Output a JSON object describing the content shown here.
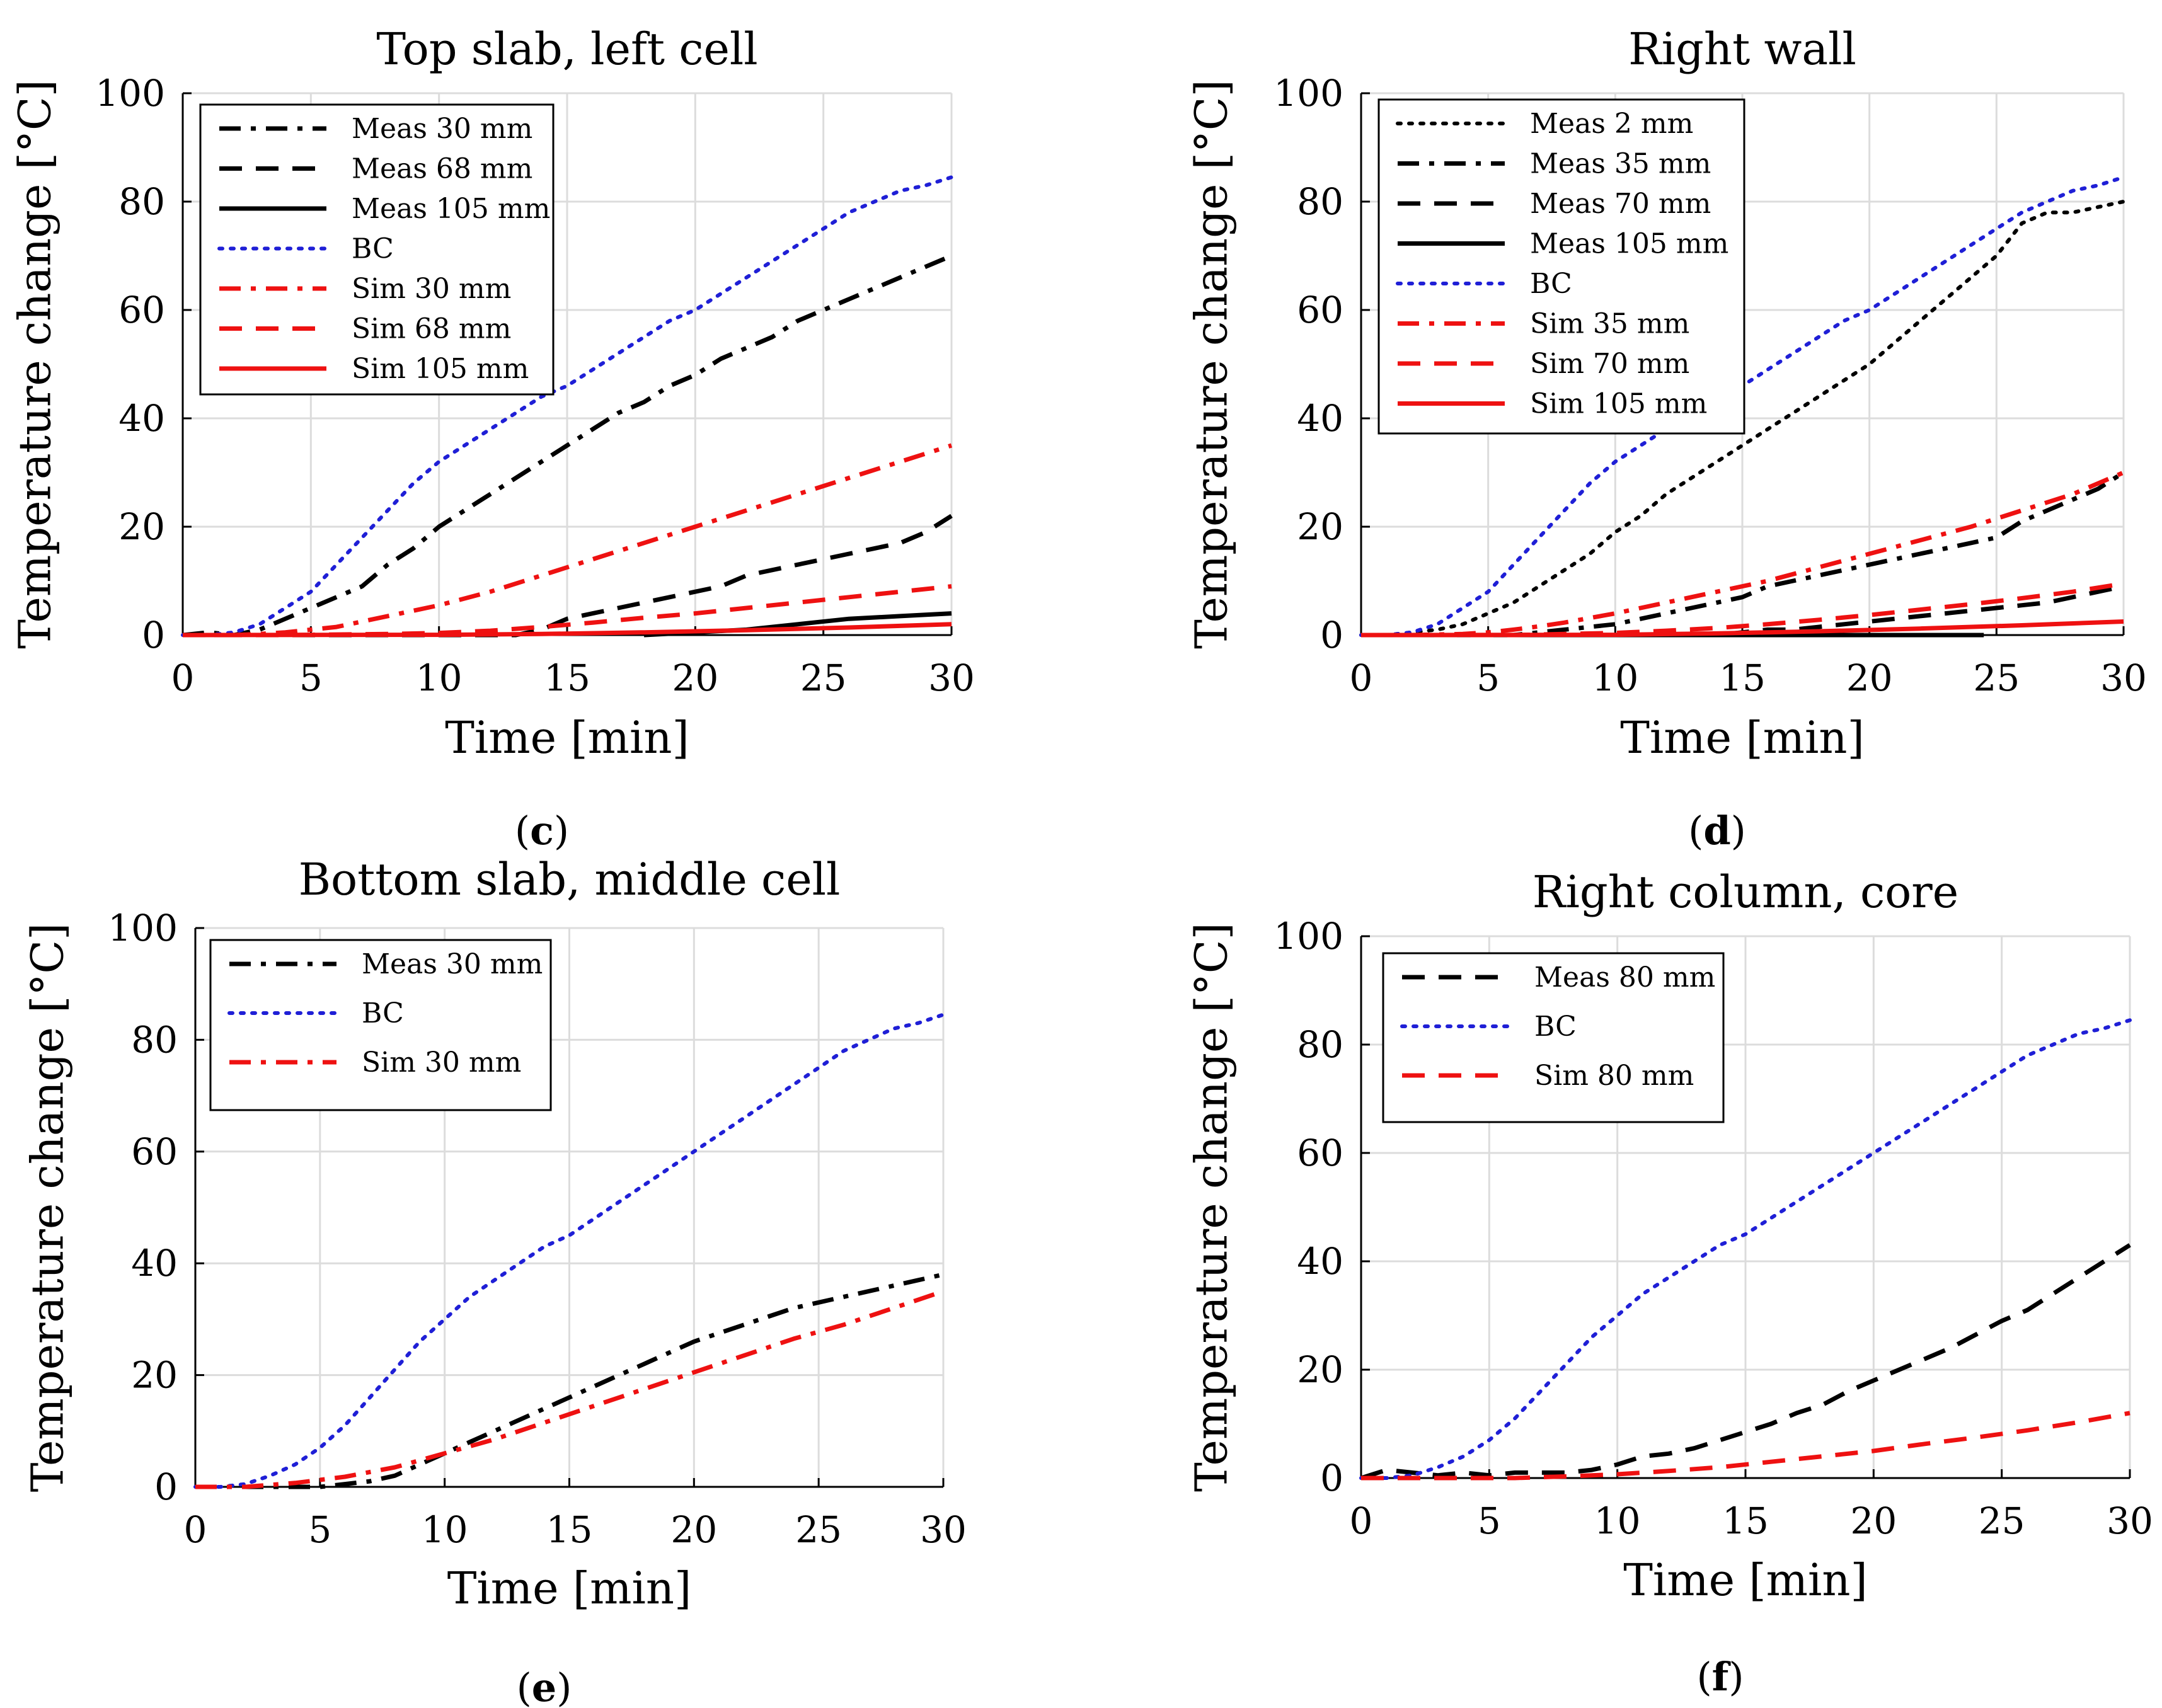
{
  "chart_data": [
    {
      "type": "line",
      "title": "Top slab, left cell",
      "caption": "c",
      "xlabel": "Time [min]",
      "ylabel": "Temperature change [°C]",
      "xlim": [
        0,
        30
      ],
      "ylim": [
        0,
        100
      ],
      "xticks": [
        0,
        5,
        10,
        15,
        20,
        25,
        30
      ],
      "yticks": [
        0,
        20,
        40,
        60,
        80,
        100
      ],
      "grid": true,
      "legend_position": "top-left",
      "series": [
        {
          "name": "Meas 30 mm",
          "color": "#000000",
          "style": "dashdot",
          "x": [
            0,
            1,
            2,
            3,
            4,
            5,
            6,
            7,
            8,
            9,
            10,
            11,
            12,
            13,
            14,
            15,
            16,
            17,
            18,
            19,
            20,
            21,
            22,
            23,
            24,
            25,
            26,
            27,
            28,
            29,
            30
          ],
          "y": [
            0,
            0.5,
            0,
            1,
            3,
            5,
            7,
            9,
            13,
            16,
            20,
            23,
            26,
            29,
            32,
            35,
            38,
            41,
            43,
            46,
            48,
            51,
            53,
            55,
            58,
            60,
            62,
            64,
            66,
            68,
            70
          ]
        },
        {
          "name": "Meas 68 mm",
          "color": "#000000",
          "style": "dashed",
          "x": [
            0,
            2,
            4,
            6,
            8,
            10,
            12,
            13,
            14,
            15,
            16,
            17,
            18,
            19,
            20,
            21,
            22,
            23,
            24,
            25,
            26,
            27,
            28,
            29,
            30
          ],
          "y": [
            0,
            0,
            0,
            0,
            0,
            0,
            0,
            0,
            1,
            3,
            4,
            5,
            6,
            7,
            8,
            9,
            11,
            12,
            13,
            14,
            15,
            16,
            17,
            19,
            22
          ]
        },
        {
          "name": "Meas 105 mm",
          "color": "#000000",
          "style": "solid",
          "x": [
            18,
            20,
            22,
            24,
            26,
            28,
            30
          ],
          "y": [
            0,
            0.5,
            1,
            2,
            3,
            3.5,
            4
          ]
        },
        {
          "name": "BC",
          "color": "#1f1fd6",
          "style": "dotted",
          "x": [
            0,
            1,
            2,
            3,
            4,
            5,
            6,
            7,
            8,
            9,
            10,
            11,
            12,
            13,
            14,
            15,
            16,
            17,
            18,
            19,
            20,
            21,
            22,
            23,
            24,
            25,
            26,
            27,
            28,
            29,
            30
          ],
          "y": [
            0,
            0,
            0.5,
            2,
            5,
            8,
            13,
            18,
            23,
            28,
            32,
            35,
            38,
            41,
            44,
            46,
            49,
            52,
            55,
            58,
            60,
            63,
            66,
            69,
            72,
            75,
            78,
            80,
            82,
            83,
            84.5
          ]
        },
        {
          "name": "Sim 30 mm",
          "color": "#ee1111",
          "style": "dashdot",
          "x": [
            0,
            2,
            3,
            4,
            5,
            6,
            7,
            8,
            9,
            10,
            12,
            14,
            16,
            18,
            20,
            22,
            24,
            26,
            28,
            30
          ],
          "y": [
            0,
            0,
            0.2,
            0.5,
            1,
            1.5,
            2.5,
            3.5,
            4.5,
            5.5,
            8,
            11,
            14,
            17,
            20,
            23,
            26,
            29,
            32,
            35
          ]
        },
        {
          "name": "Sim 68 mm",
          "color": "#ee1111",
          "style": "dashed",
          "x": [
            0,
            4,
            6,
            8,
            10,
            12,
            14,
            16,
            18,
            20,
            22,
            24,
            26,
            28,
            30
          ],
          "y": [
            0,
            0,
            0.1,
            0.2,
            0.4,
            0.8,
            1.5,
            2.3,
            3.2,
            4,
            5,
            6,
            7,
            8,
            9
          ]
        },
        {
          "name": "Sim 105 mm",
          "color": "#ee1111",
          "style": "solid",
          "x": [
            0,
            10,
            14,
            18,
            22,
            26,
            30
          ],
          "y": [
            0,
            0.05,
            0.2,
            0.5,
            0.9,
            1.4,
            2
          ]
        }
      ]
    },
    {
      "type": "line",
      "title": "Right wall",
      "caption": "d",
      "xlabel": "Time [min]",
      "ylabel": "Temperature change [°C]",
      "xlim": [
        0,
        30
      ],
      "ylim": [
        0,
        100
      ],
      "xticks": [
        0,
        5,
        10,
        15,
        20,
        25,
        30
      ],
      "yticks": [
        0,
        20,
        40,
        60,
        80,
        100
      ],
      "grid": true,
      "legend_position": "top-left",
      "series": [
        {
          "name": "Meas 2 mm",
          "color": "#000000",
          "style": "dotted",
          "x": [
            0,
            1,
            2,
            3,
            4,
            5,
            6,
            7,
            8,
            9,
            10,
            11,
            12,
            13,
            14,
            15,
            16,
            17,
            18,
            19,
            20,
            21,
            22,
            23,
            24,
            25,
            26,
            27,
            28,
            29,
            30
          ],
          "y": [
            0,
            0,
            0.5,
            1,
            2,
            4,
            6,
            9,
            12,
            15,
            19,
            22,
            26,
            29,
            32,
            35,
            38,
            41,
            44,
            47,
            50,
            54,
            58,
            62,
            66,
            70,
            76,
            78,
            78,
            79,
            80
          ]
        },
        {
          "name": "Meas 35 mm",
          "color": "#000000",
          "style": "dashdot",
          "x": [
            0,
            2,
            4,
            6,
            7,
            8,
            9,
            10,
            11,
            12,
            13,
            14,
            15,
            16,
            17,
            18,
            19,
            20,
            21,
            22,
            23,
            24,
            25,
            26,
            27,
            28,
            29,
            30
          ],
          "y": [
            0,
            0,
            0,
            0,
            0.5,
            1,
            1.5,
            2,
            3,
            4,
            5,
            6,
            7,
            9,
            10,
            11,
            12,
            13,
            14,
            15,
            16,
            17,
            18,
            21,
            23,
            25,
            27,
            30
          ]
        },
        {
          "name": "Meas 70 mm",
          "color": "#000000",
          "style": "dashed",
          "x": [
            0,
            4,
            8,
            12,
            14,
            15,
            16,
            17,
            18,
            19,
            20,
            21,
            22,
            23,
            24,
            25,
            26,
            27,
            28,
            29,
            30
          ],
          "y": [
            0,
            0,
            0,
            0,
            0,
            0.5,
            1,
            1,
            1.5,
            2,
            2.5,
            3,
            3.5,
            4,
            4.5,
            5,
            5.5,
            6,
            7,
            8,
            9
          ]
        },
        {
          "name": "Meas 105 mm",
          "color": "#000000",
          "style": "solid",
          "x": [
            0,
            6,
            12,
            18,
            24.5
          ],
          "y": [
            0,
            0,
            0,
            0,
            0
          ]
        },
        {
          "name": "BC",
          "color": "#1f1fd6",
          "style": "dotted",
          "x": [
            0,
            1,
            2,
            3,
            4,
            5,
            6,
            7,
            8,
            9,
            10,
            11,
            12,
            13,
            14,
            15,
            16,
            17,
            18,
            19,
            20,
            21,
            22,
            23,
            24,
            25,
            26,
            27,
            28,
            29,
            30
          ],
          "y": [
            0,
            0,
            0.5,
            2,
            5,
            8,
            13,
            18,
            23,
            28,
            32,
            35,
            38,
            41,
            44,
            46,
            49,
            52,
            55,
            58,
            60,
            63,
            66,
            69,
            72,
            75,
            78,
            80,
            82,
            83,
            84.5
          ]
        },
        {
          "name": "Sim 35 mm",
          "color": "#ee1111",
          "style": "dashdot",
          "x": [
            0,
            2,
            4,
            5,
            6,
            7,
            8,
            10,
            12,
            14,
            16,
            18,
            20,
            22,
            24,
            26,
            28,
            30
          ],
          "y": [
            0,
            0,
            0.2,
            0.5,
            1,
            1.6,
            2.3,
            4,
            6,
            8,
            10,
            12.5,
            15,
            17.5,
            20,
            23,
            26,
            30
          ]
        },
        {
          "name": "Sim 70 mm",
          "color": "#ee1111",
          "style": "dashed",
          "x": [
            0,
            6,
            8,
            10,
            12,
            14,
            16,
            18,
            20,
            22,
            24,
            26,
            28,
            30
          ],
          "y": [
            0,
            0,
            0.2,
            0.4,
            0.8,
            1.3,
            2,
            2.8,
            3.7,
            4.7,
            5.7,
            6.8,
            8,
            9.5
          ]
        },
        {
          "name": "Sim 105 mm",
          "color": "#ee1111",
          "style": "solid",
          "x": [
            0,
            10,
            14,
            18,
            22,
            26,
            30
          ],
          "y": [
            0,
            0.05,
            0.3,
            0.7,
            1.2,
            1.8,
            2.5
          ]
        }
      ]
    },
    {
      "type": "line",
      "title": "Bottom slab, middle cell",
      "caption": "e",
      "xlabel": "Time [min]",
      "ylabel": "Temperature change [°C]",
      "xlim": [
        0,
        30
      ],
      "ylim": [
        0,
        100
      ],
      "xticks": [
        0,
        5,
        10,
        15,
        20,
        25,
        30
      ],
      "yticks": [
        0,
        20,
        40,
        60,
        80,
        100
      ],
      "grid": true,
      "legend_position": "top-left",
      "series": [
        {
          "name": "Meas 30 mm",
          "color": "#000000",
          "style": "dashdot",
          "x": [
            0,
            2,
            4,
            5,
            6,
            7,
            8,
            9,
            10,
            11,
            12,
            13,
            14,
            15,
            16,
            17,
            18,
            19,
            20,
            21,
            22,
            23,
            24,
            25,
            26,
            27,
            28,
            29,
            30
          ],
          "y": [
            0,
            0,
            0,
            0,
            0.5,
            1,
            2,
            4,
            6,
            8,
            10,
            12,
            14,
            16,
            18,
            20,
            22,
            24,
            26,
            27.5,
            29,
            30.5,
            32,
            33,
            34,
            35,
            36,
            37,
            38
          ]
        },
        {
          "name": "BC",
          "color": "#1f1fd6",
          "style": "dotted",
          "x": [
            0,
            1,
            2,
            3,
            4,
            5,
            6,
            7,
            8,
            9,
            10,
            11,
            12,
            13,
            14,
            15,
            16,
            17,
            18,
            19,
            20,
            21,
            22,
            23,
            24,
            25,
            26,
            27,
            28,
            29,
            30
          ],
          "y": [
            0,
            0,
            0.5,
            2,
            4,
            7,
            11,
            16,
            21,
            26,
            30,
            34,
            37,
            40,
            43,
            45,
            48,
            51,
            54,
            57,
            60,
            63,
            66,
            69,
            72,
            75,
            78,
            80,
            82,
            83,
            84.5
          ]
        },
        {
          "name": "Sim 30 mm",
          "color": "#ee1111",
          "style": "dashdot",
          "x": [
            0,
            2,
            4,
            6,
            8,
            10,
            12,
            14,
            16,
            18,
            20,
            22,
            24,
            26,
            28,
            30
          ],
          "y": [
            0,
            0,
            0.7,
            1.8,
            3.5,
            6,
            8.5,
            11.5,
            14.5,
            17.5,
            20.5,
            23.5,
            26.5,
            29,
            32,
            35
          ]
        }
      ]
    },
    {
      "type": "line",
      "title": "Right column, core",
      "caption": "f",
      "xlabel": "Time [min]",
      "ylabel": "Temperature change [°C]",
      "xlim": [
        0,
        30
      ],
      "ylim": [
        0,
        100
      ],
      "xticks": [
        0,
        5,
        10,
        15,
        20,
        25,
        30
      ],
      "yticks": [
        0,
        20,
        40,
        60,
        80,
        100
      ],
      "grid": true,
      "legend_position": "top-left",
      "series": [
        {
          "name": "Meas 80 mm",
          "color": "#000000",
          "style": "dashed",
          "x": [
            0,
            1,
            2,
            3,
            4,
            5,
            6,
            7,
            8,
            9,
            10,
            11,
            12,
            13,
            14,
            15,
            16,
            17,
            18,
            19,
            20,
            21,
            22,
            23,
            24,
            25,
            26,
            27,
            28,
            29,
            30
          ],
          "y": [
            0,
            1.5,
            1,
            0.5,
            1,
            0.5,
            1,
            1,
            1,
            1.5,
            2.5,
            4,
            4.5,
            5.5,
            7,
            8.5,
            10,
            12,
            13.5,
            16,
            18,
            20,
            22,
            24,
            26.5,
            29,
            31,
            34,
            37,
            40,
            43
          ]
        },
        {
          "name": "BC",
          "color": "#1f1fd6",
          "style": "dotted",
          "x": [
            0,
            1,
            2,
            3,
            4,
            5,
            6,
            7,
            8,
            9,
            10,
            11,
            12,
            13,
            14,
            15,
            16,
            17,
            18,
            19,
            20,
            21,
            22,
            23,
            24,
            25,
            26,
            27,
            28,
            29,
            30
          ],
          "y": [
            0,
            0,
            0.5,
            2,
            4,
            7,
            11,
            16,
            21,
            26,
            30,
            34,
            37,
            40,
            43,
            45,
            48,
            51,
            54,
            57,
            60,
            63,
            66,
            69,
            72,
            75,
            78,
            80,
            82,
            83,
            84.5
          ]
        },
        {
          "name": "Sim 80 mm",
          "color": "#ee1111",
          "style": "dashed",
          "x": [
            0,
            6,
            8,
            10,
            12,
            14,
            16,
            18,
            20,
            22,
            24,
            26,
            28,
            30
          ],
          "y": [
            0,
            0,
            0.3,
            0.7,
            1.3,
            2,
            3,
            4,
            5,
            6.3,
            7.5,
            8.8,
            10.3,
            12
          ]
        }
      ]
    }
  ]
}
